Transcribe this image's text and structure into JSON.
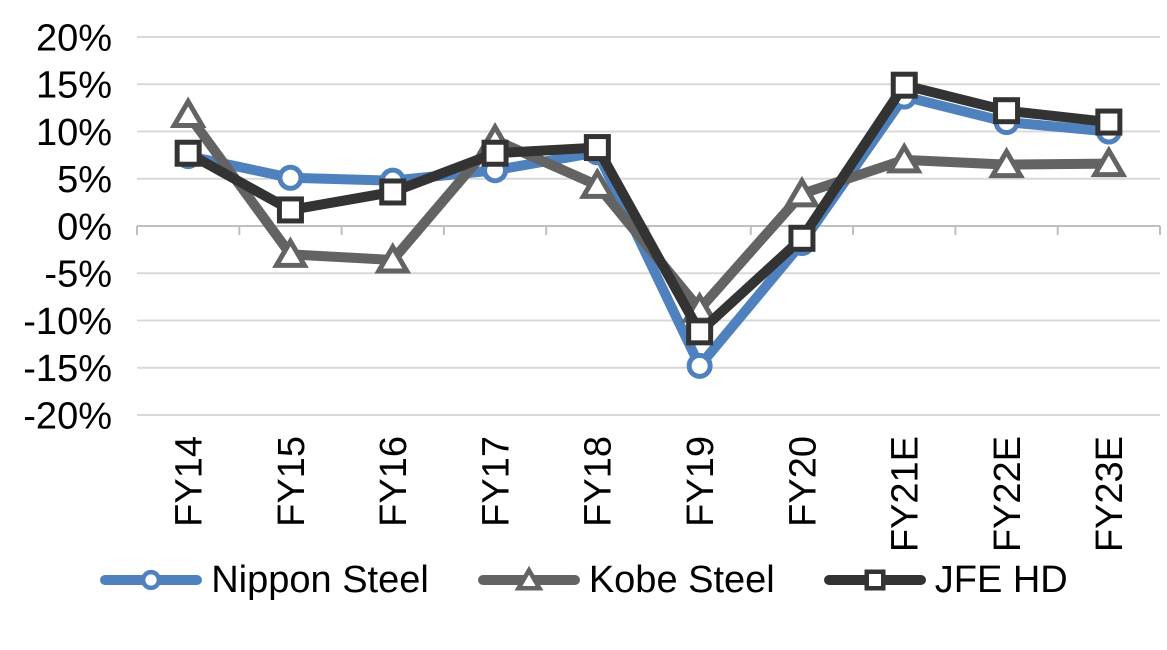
{
  "chart_data": {
    "type": "line",
    "categories": [
      "FY14",
      "FY15",
      "FY16",
      "FY17",
      "FY18",
      "FY19",
      "FY20",
      "FY21E",
      "FY22E",
      "FY23E"
    ],
    "series": [
      {
        "name": "Nippon Steel",
        "marker": "circle",
        "color": "#4E81BD",
        "values": [
          7.4,
          5.1,
          4.8,
          5.9,
          7.8,
          -14.8,
          -1.8,
          13.7,
          11.0,
          10.0
        ]
      },
      {
        "name": "Kobe Steel",
        "marker": "triangle",
        "color": "#636363",
        "values": [
          11.8,
          -3.0,
          -3.6,
          9.1,
          4.3,
          -8.8,
          3.4,
          7.0,
          6.5,
          6.6
        ]
      },
      {
        "name": "JFE HD",
        "marker": "square",
        "color": "#333333",
        "values": [
          7.7,
          1.7,
          3.6,
          7.7,
          8.3,
          -11.2,
          -1.3,
          14.9,
          12.2,
          11.0
        ]
      }
    ],
    "ylim": [
      -20,
      20
    ],
    "ytick_step": 5,
    "yticks": [
      20,
      15,
      10,
      5,
      0,
      -5,
      -10,
      -15,
      -20
    ],
    "ytick_labels": [
      "20%",
      "15%",
      "10%",
      "5%",
      "0%",
      "-5%",
      "-10%",
      "-15%",
      "-20%"
    ],
    "grid": true,
    "legend_position": "bottom",
    "colors": {
      "gridline": "#D9D9D9",
      "axis": "#BFBFBF",
      "text": "#000000",
      "marker_fill": "#FFFFFF"
    }
  }
}
